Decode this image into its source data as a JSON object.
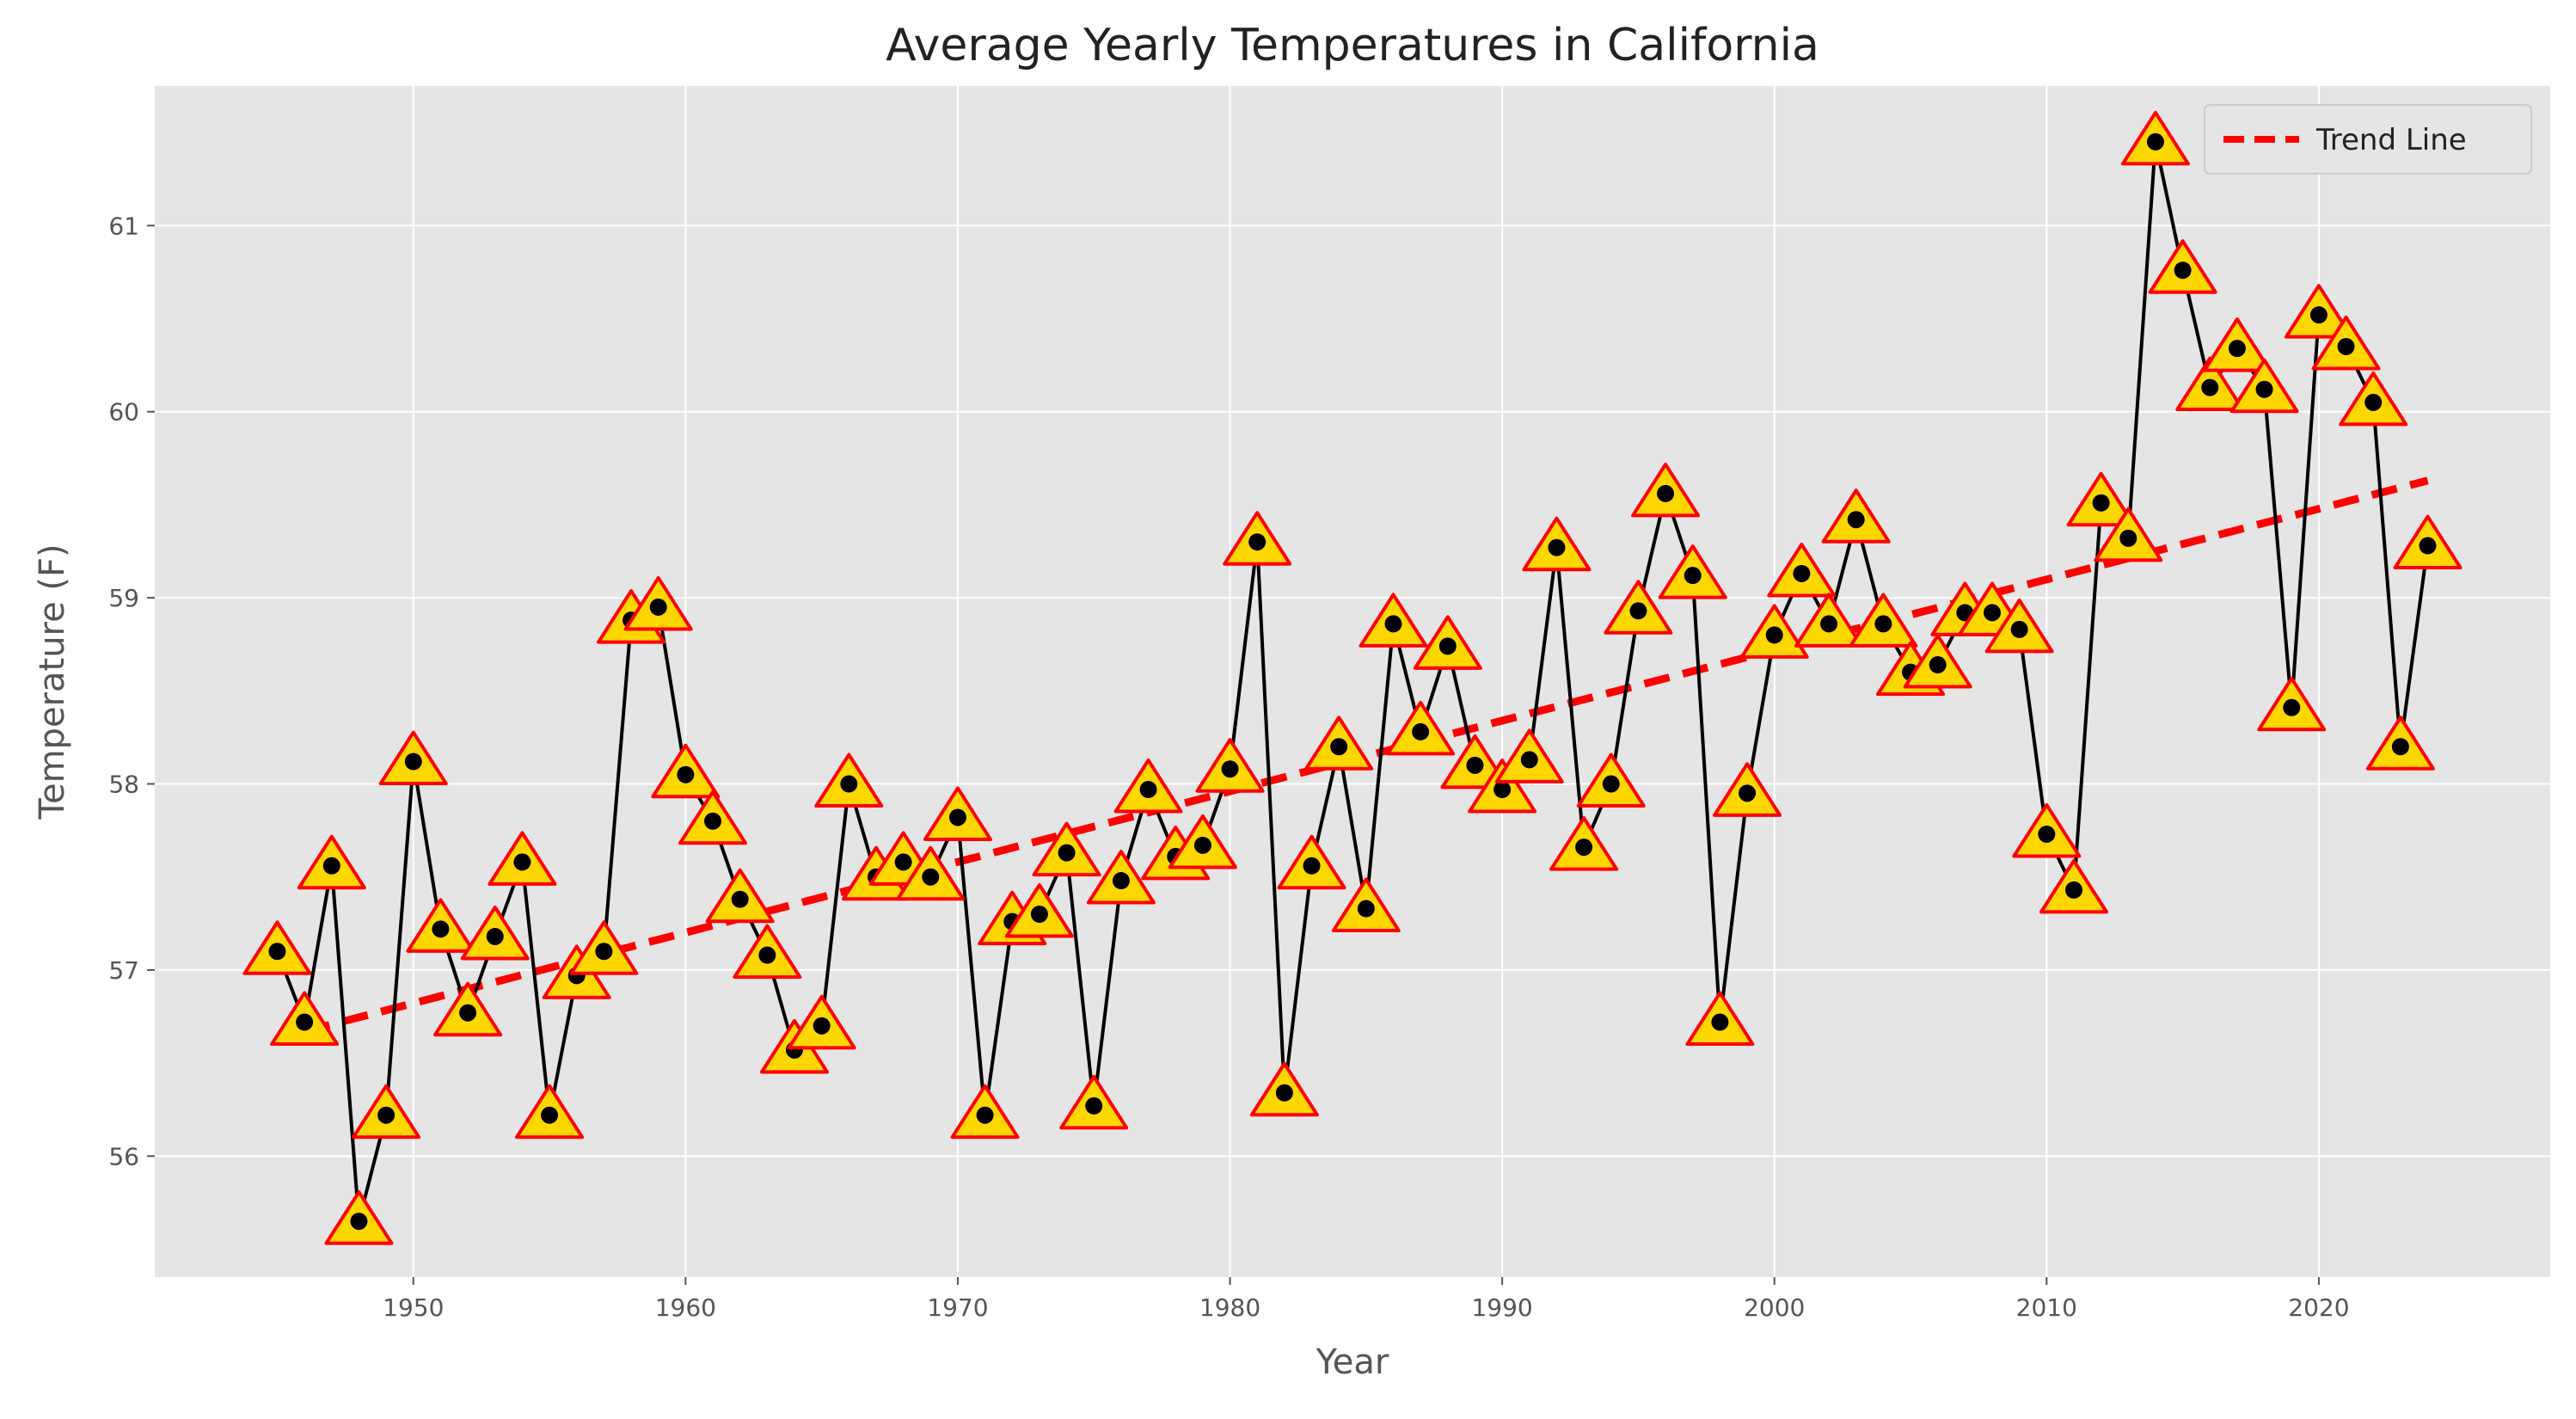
{
  "chart_data": {
    "type": "line",
    "title": "Average Yearly Temperatures in California",
    "xlabel": "Year",
    "ylabel": "Temperature (F)",
    "xlim": [
      1940.5,
      2028.5
    ],
    "ylim": [
      55.35,
      61.75
    ],
    "xticks": [
      1950,
      1960,
      1970,
      1980,
      1990,
      2000,
      2010,
      2020
    ],
    "yticks": [
      56,
      57,
      58,
      59,
      60,
      61
    ],
    "grid": true,
    "legend_position": "top-right",
    "x": [
      1945,
      1946,
      1947,
      1948,
      1949,
      1950,
      1951,
      1952,
      1953,
      1954,
      1955,
      1956,
      1957,
      1958,
      1959,
      1960,
      1961,
      1962,
      1963,
      1964,
      1965,
      1966,
      1967,
      1968,
      1969,
      1970,
      1971,
      1972,
      1973,
      1974,
      1975,
      1976,
      1977,
      1978,
      1979,
      1980,
      1981,
      1982,
      1983,
      1984,
      1985,
      1986,
      1987,
      1988,
      1989,
      1990,
      1991,
      1992,
      1993,
      1994,
      1995,
      1996,
      1997,
      1998,
      1999,
      2000,
      2001,
      2002,
      2003,
      2004,
      2005,
      2006,
      2007,
      2008,
      2009,
      2010,
      2011,
      2012,
      2013,
      2014,
      2015,
      2016,
      2017,
      2018,
      2019,
      2020,
      2021,
      2022,
      2023,
      2024
    ],
    "series": [
      {
        "values": [
          57.1,
          56.72,
          57.56,
          55.65,
          56.22,
          58.12,
          57.22,
          56.77,
          57.18,
          57.58,
          56.22,
          56.97,
          57.1,
          58.88,
          58.95,
          58.05,
          57.8,
          57.38,
          57.08,
          56.57,
          56.7,
          58.0,
          57.5,
          57.58,
          57.5,
          57.82,
          56.22,
          57.26,
          57.3,
          57.63,
          56.27,
          57.48,
          57.97,
          57.61,
          57.67,
          58.08,
          59.3,
          56.34,
          57.56,
          58.2,
          57.33,
          58.86,
          58.28,
          58.74,
          58.1,
          57.97,
          58.13,
          59.27,
          57.66,
          58.0,
          58.93,
          59.56,
          59.12,
          56.72,
          57.95,
          58.8,
          59.13,
          58.86,
          59.42,
          58.86,
          58.6,
          58.64,
          58.92,
          58.92,
          58.83,
          57.73,
          57.43,
          59.51,
          59.32,
          61.45,
          60.76,
          60.13,
          60.34,
          60.12,
          58.41,
          60.52,
          60.35,
          60.05,
          58.2,
          59.28
        ],
        "color": "#000000",
        "marker_fill": "#ffd700",
        "marker_edge": "#ff0000"
      },
      {
        "name": "Trend Line",
        "x": [
          1946,
          2024
        ],
        "values": [
          56.67,
          59.63
        ],
        "color": "#ff0000",
        "style": "dashed"
      }
    ]
  }
}
